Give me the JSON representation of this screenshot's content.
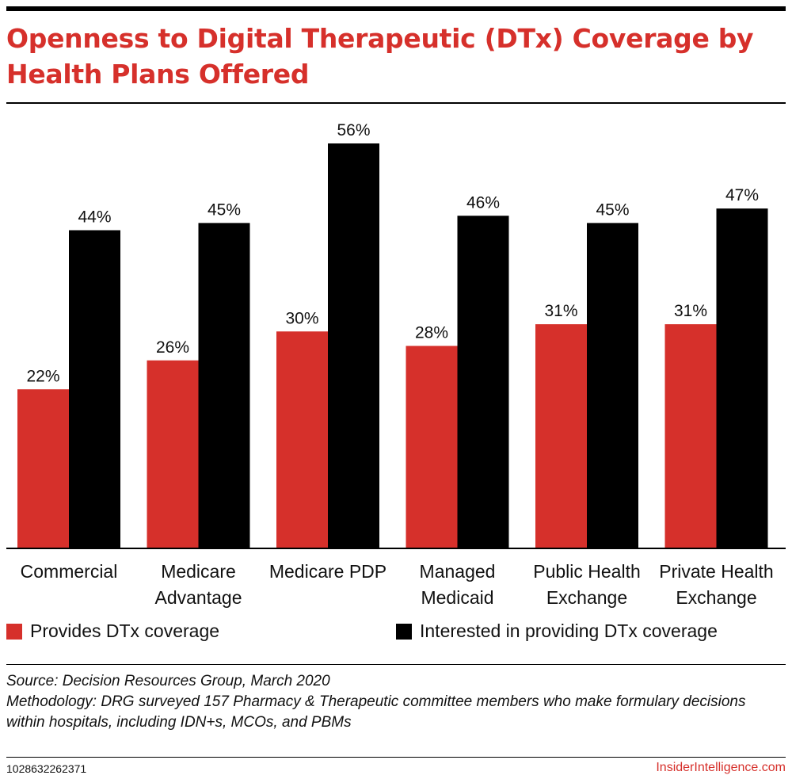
{
  "title": "Openness to Digital Therapeutic (DTx) Coverage by Health Plans Offered",
  "colors": {
    "provides": "#d6302b",
    "interested": "#000000",
    "title": "#d6302b"
  },
  "chart_data": {
    "type": "bar",
    "title": "Openness to Digital Therapeutic (DTx) Coverage by Health Plans Offered",
    "categories": [
      [
        "Commercial"
      ],
      [
        "Medicare",
        "Advantage"
      ],
      [
        "Medicare PDP"
      ],
      [
        "Managed",
        "Medicaid"
      ],
      [
        "Public Health",
        "Exchange"
      ],
      [
        "Private Health",
        "Exchange"
      ]
    ],
    "series": [
      {
        "name": "Provides DTx coverage",
        "values": [
          22,
          26,
          30,
          28,
          31,
          31
        ],
        "labels": [
          "22%",
          "26%",
          "30%",
          "28%",
          "31%",
          "31%"
        ]
      },
      {
        "name": "Interested in providing DTx coverage",
        "values": [
          44,
          45,
          56,
          46,
          45,
          47
        ],
        "labels": [
          "44%",
          "45%",
          "56%",
          "46%",
          "45%",
          "47%"
        ]
      }
    ],
    "xlabel": "",
    "ylabel": "",
    "ylim": [
      0,
      56
    ],
    "grid": false,
    "legend": "bottom"
  },
  "legend": {
    "provides": "Provides DTx coverage",
    "interested": "Interested in providing DTx coverage"
  },
  "source": "Source: Decision Resources Group, March 2020",
  "methodology": "Methodology: DRG surveyed 157 Pharmacy & Therapeutic committee members who make formulary decisions within hospitals, including IDN+s, MCOs, and PBMs",
  "chart_id": "1028632262371",
  "brand": "InsiderIntelligence.com"
}
